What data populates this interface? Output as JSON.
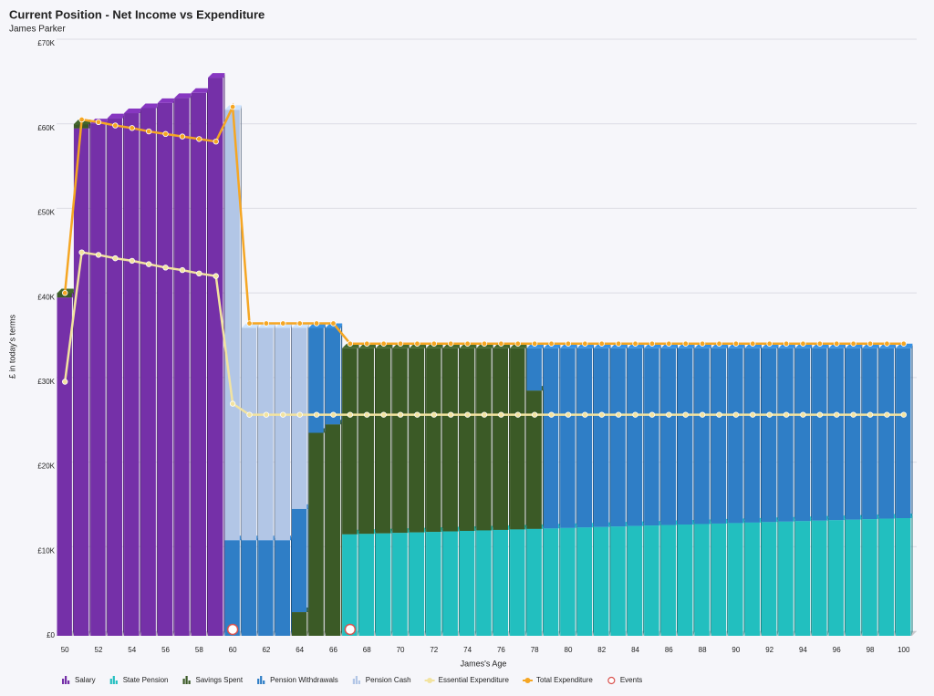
{
  "chart_data": {
    "type": "bar",
    "stacked": true,
    "title": "Current Position - Net Income vs Expenditure",
    "subtitle": "James Parker",
    "x_label": "James's Age",
    "y_label": "£ in today's terms",
    "categories": [
      50,
      null,
      52,
      null,
      54,
      null,
      56,
      null,
      58,
      null,
      60,
      null,
      62,
      null,
      64,
      null,
      66,
      null,
      68,
      null,
      70,
      null,
      72,
      null,
      74,
      null,
      76,
      null,
      78,
      null,
      80,
      null,
      82,
      null,
      84,
      null,
      86,
      null,
      88,
      null,
      90,
      null,
      92,
      null,
      94,
      null,
      96,
      null,
      98,
      null,
      100
    ],
    "ylim": [
      0,
      70000
    ],
    "yticks": [
      {
        "value": 0,
        "label": "£0"
      },
      {
        "value": 10000,
        "label": "£10K"
      },
      {
        "value": 20000,
        "label": "£20K"
      },
      {
        "value": 30000,
        "label": "£30K"
      },
      {
        "value": 40000,
        "label": "£40K"
      },
      {
        "value": 50000,
        "label": "£50K"
      },
      {
        "value": 60000,
        "label": "£60K"
      },
      {
        "value": 70000,
        "label": "£70K"
      }
    ],
    "grid": true,
    "legend": "bottom",
    "series": [
      {
        "name": "Salary",
        "type": "bar",
        "color": "#7530a8",
        "values": [
          40000,
          60000,
          60600,
          61200,
          61800,
          62400,
          63000,
          63600,
          64200,
          66000,
          0,
          0,
          0,
          0,
          0,
          0,
          0,
          0,
          0,
          0,
          0,
          0,
          0,
          0,
          0,
          0,
          0,
          0,
          0,
          0,
          0,
          0,
          0,
          0,
          0,
          0,
          0,
          0,
          0,
          0,
          0,
          0,
          0,
          0,
          0,
          0,
          0,
          0,
          0,
          0,
          0
        ]
      },
      {
        "name": "State Pension",
        "type": "bar",
        "color": "#22bfbf",
        "values": [
          0,
          0,
          0,
          0,
          0,
          0,
          0,
          0,
          0,
          0,
          0,
          0,
          0,
          0,
          0,
          0,
          0,
          12000,
          12058,
          12116,
          12174,
          12232,
          12290,
          12348,
          12406,
          12464,
          12522,
          12580,
          12638,
          12696,
          12754,
          12812,
          12870,
          12928,
          12986,
          13044,
          13102,
          13160,
          13218,
          13276,
          13334,
          13392,
          13450,
          13508,
          13566,
          13624,
          13682,
          13740,
          13798,
          13856,
          13914
        ]
      },
      {
        "name": "Savings Spent",
        "type": "bar",
        "color": "#3b5a26",
        "values": [
          500,
          500,
          0,
          0,
          0,
          0,
          0,
          0,
          0,
          0,
          0,
          0,
          0,
          0,
          2800,
          24000,
          25000,
          22000,
          21942,
          21884,
          21826,
          21768,
          21710,
          21652,
          21594,
          21536,
          21478,
          21420,
          16362,
          0,
          0,
          0,
          0,
          0,
          0,
          0,
          0,
          0,
          0,
          0,
          0,
          0,
          0,
          0,
          0,
          0,
          0,
          0,
          0,
          0,
          0
        ]
      },
      {
        "name": "Pension Withdrawals",
        "type": "bar",
        "color": "#2f7ec6",
        "values": [
          0,
          0,
          0,
          0,
          0,
          0,
          0,
          0,
          0,
          0,
          11300,
          11300,
          11300,
          11300,
          12200,
          12400,
          11400,
          0,
          0,
          0,
          0,
          0,
          0,
          0,
          0,
          0,
          0,
          0,
          5000,
          21304,
          21246,
          21188,
          21130,
          21072,
          21014,
          20956,
          20898,
          20840,
          20782,
          20724,
          20666,
          20608,
          20550,
          20492,
          20434,
          20376,
          20318,
          20260,
          20202,
          20144,
          20086
        ]
      },
      {
        "name": "Pension Cash",
        "type": "bar",
        "color": "#b2c6e6",
        "values": [
          0,
          0,
          0,
          0,
          0,
          0,
          0,
          0,
          0,
          0,
          50900,
          25100,
          25100,
          25100,
          21400,
          0,
          0,
          0,
          0,
          0,
          0,
          0,
          0,
          0,
          0,
          0,
          0,
          0,
          0,
          0,
          0,
          0,
          0,
          0,
          0,
          0,
          0,
          0,
          0,
          0,
          0,
          0,
          0,
          0,
          0,
          0,
          0,
          0,
          0,
          0,
          0
        ]
      },
      {
        "name": "Essential Expenditure",
        "type": "line",
        "color": "#f2e3a0",
        "values": [
          29500,
          44800,
          44500,
          44100,
          43800,
          43400,
          43000,
          42700,
          42300,
          42000,
          26900,
          25600,
          25600,
          25600,
          25600,
          25600,
          25600,
          25600,
          25600,
          25600,
          25600,
          25600,
          25600,
          25600,
          25600,
          25600,
          25600,
          25600,
          25600,
          25600,
          25600,
          25600,
          25600,
          25600,
          25600,
          25600,
          25600,
          25600,
          25600,
          25600,
          25600,
          25600,
          25600,
          25600,
          25600,
          25600,
          25600,
          25600,
          25600,
          25600,
          25600
        ]
      },
      {
        "name": "Total Expenditure",
        "type": "line",
        "color": "#f5a623",
        "values": [
          40000,
          60500,
          60200,
          59800,
          59500,
          59100,
          58800,
          58500,
          58200,
          57900,
          62000,
          36400,
          36400,
          36400,
          36400,
          36400,
          36400,
          34000,
          34000,
          34000,
          34000,
          34000,
          34000,
          34000,
          34000,
          34000,
          34000,
          34000,
          34000,
          34000,
          34000,
          34000,
          34000,
          34000,
          34000,
          34000,
          34000,
          34000,
          34000,
          34000,
          34000,
          34000,
          34000,
          34000,
          34000,
          34000,
          34000,
          34000,
          34000,
          34000,
          34000
        ]
      },
      {
        "name": "Events",
        "type": "scatter",
        "color": "#d9534f",
        "values": [
          null,
          null,
          null,
          null,
          null,
          null,
          null,
          null,
          null,
          null,
          0,
          null,
          null,
          null,
          null,
          null,
          null,
          0,
          null,
          null,
          null,
          null,
          null,
          null,
          null,
          null,
          null,
          null,
          null,
          null,
          null,
          null,
          null,
          null,
          null,
          null,
          null,
          null,
          null,
          null,
          null,
          null,
          null,
          null,
          null,
          null,
          null,
          null,
          null,
          null,
          null
        ]
      }
    ]
  }
}
